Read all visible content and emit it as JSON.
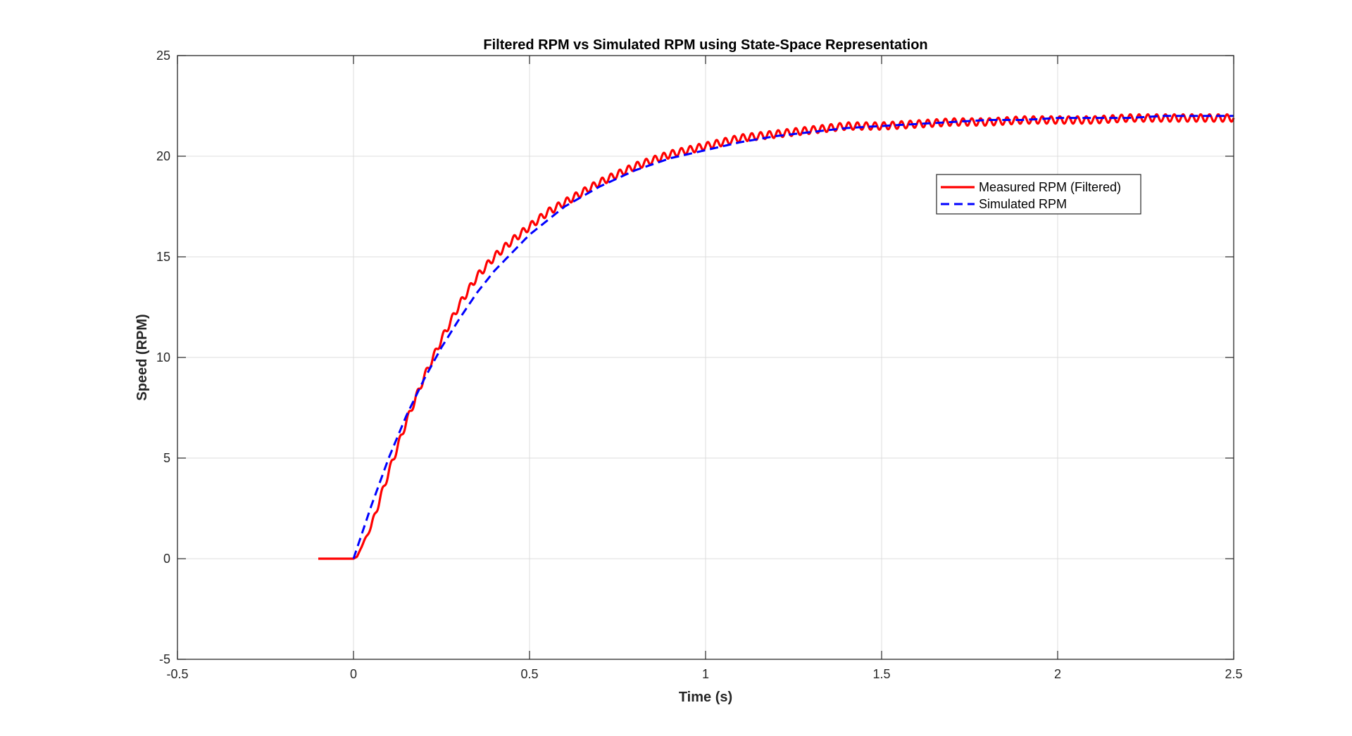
{
  "chart_data": {
    "type": "line",
    "title": "Filtered RPM vs Simulated RPM using State-Space Representation",
    "xlabel": "Time (s)",
    "ylabel": "Speed (RPM)",
    "xlim": [
      -0.5,
      2.5
    ],
    "ylim": [
      -5,
      25
    ],
    "xticks": [
      -0.5,
      0,
      0.5,
      1,
      1.5,
      2,
      2.5
    ],
    "xtick_labels": [
      "-0.5",
      "0",
      "0.5",
      "1",
      "1.5",
      "2",
      "2.5"
    ],
    "yticks": [
      -5,
      0,
      5,
      10,
      15,
      20,
      25
    ],
    "ytick_labels": [
      "-5",
      "0",
      "5",
      "10",
      "15",
      "20",
      "25"
    ],
    "grid": true,
    "legend_position": "upper-right",
    "series": [
      {
        "name": "Measured RPM (Filtered)",
        "color": "#ff0000",
        "style": "solid",
        "x": [
          -0.1,
          -0.05,
          0.0,
          0.01,
          0.05,
          0.1,
          0.15,
          0.2,
          0.25,
          0.3,
          0.35,
          0.4,
          0.45,
          0.5,
          0.55,
          0.6,
          0.7,
          0.8,
          0.9,
          1.0,
          1.1,
          1.2,
          1.3,
          1.4,
          1.5,
          1.6,
          1.7,
          1.8,
          1.9,
          2.0,
          2.1,
          2.2,
          2.3,
          2.4,
          2.5
        ],
        "y": [
          0,
          0,
          0,
          0.1,
          1.6,
          4.3,
          6.8,
          9.0,
          10.9,
          12.6,
          14.0,
          15.0,
          15.8,
          16.5,
          17.2,
          17.7,
          18.7,
          19.5,
          20.1,
          20.5,
          20.9,
          21.1,
          21.3,
          21.5,
          21.5,
          21.6,
          21.7,
          21.7,
          21.8,
          21.8,
          21.8,
          21.9,
          21.9,
          21.9,
          21.9
        ]
      },
      {
        "name": "Simulated RPM",
        "color": "#0000ff",
        "style": "dashed",
        "x": [
          0.0,
          0.05,
          0.1,
          0.15,
          0.2,
          0.25,
          0.3,
          0.35,
          0.4,
          0.45,
          0.5,
          0.55,
          0.6,
          0.7,
          0.8,
          0.9,
          1.0,
          1.1,
          1.2,
          1.3,
          1.4,
          1.5,
          1.6,
          1.7,
          1.8,
          1.9,
          2.0,
          2.1,
          2.2,
          2.3,
          2.4,
          2.5
        ],
        "y": [
          0,
          2.6,
          5.0,
          7.1,
          8.9,
          10.5,
          11.9,
          13.2,
          14.3,
          15.2,
          16.1,
          16.8,
          17.5,
          18.5,
          19.3,
          19.9,
          20.3,
          20.7,
          21.0,
          21.2,
          21.4,
          21.5,
          21.6,
          21.7,
          21.8,
          21.8,
          21.9,
          21.9,
          21.9,
          22.0,
          22.0,
          22.0
        ]
      }
    ]
  },
  "colors": {
    "measured": "#ff0000",
    "simulated": "#0000ff",
    "grid": "#dcdcdc",
    "axis": "#262626"
  }
}
